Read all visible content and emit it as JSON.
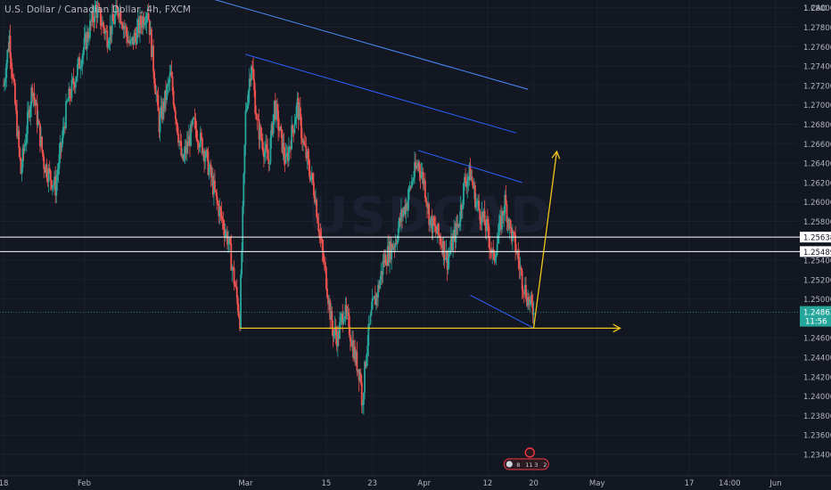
{
  "header": {
    "symbol_title": "U.S. Dollar / Canadian Dollar, 4h, FXCM"
  },
  "watermark": "USDCAD",
  "colors": {
    "background": "#131722",
    "grid": "#1c202c",
    "up": "#26a69a",
    "down": "#ef5350",
    "channel": "#2962ff",
    "channel_light": "#4a8cff",
    "arrow": "#f0c419",
    "level_line": "#ffffff",
    "price_badge": "#26a69a",
    "axis_text": "#b2b5be"
  },
  "chart_data": {
    "type": "candlestick",
    "title": "U.S. Dollar / Canadian Dollar, 4h, FXCM",
    "xlabel": "",
    "ylabel": "",
    "ylim": [
      1.2318,
      1.2808
    ],
    "grid": true,
    "y_ticks": [
      "1.28000",
      "1.27800",
      "1.27600",
      "1.27400",
      "1.27200",
      "1.27000",
      "1.26800",
      "1.26600",
      "1.26400",
      "1.26200",
      "1.26000",
      "1.25800",
      "1.25400",
      "1.25200",
      "1.25000",
      "1.24600",
      "1.24400",
      "1.24200",
      "1.24000",
      "1.23800",
      "1.23600",
      "1.23400"
    ],
    "y_axis_unit": "CAD",
    "x_ticks": [
      {
        "label": "18",
        "date": "2021-01-18"
      },
      {
        "label": "Feb",
        "date": "2021-02-01"
      },
      {
        "label": "Mar",
        "date": "2021-03-01"
      },
      {
        "label": "15",
        "date": "2021-03-15"
      },
      {
        "label": "23",
        "date": "2021-03-23"
      },
      {
        "label": "Apr",
        "date": "2021-04-01"
      },
      {
        "label": "12",
        "date": "2021-04-12"
      },
      {
        "label": "20",
        "date": "2021-04-20"
      },
      {
        "label": "May",
        "date": "2021-05-01"
      },
      {
        "label": "17",
        "date": "2021-05-17"
      },
      {
        "label": "14:00",
        "date": "2021-05-24"
      },
      {
        "label": "Jun",
        "date": "2021-06-01"
      }
    ],
    "price_anchors": [
      [
        "2021-01-18",
        1.272
      ],
      [
        "2021-01-19",
        1.277
      ],
      [
        "2021-01-21",
        1.263
      ],
      [
        "2021-01-23",
        1.272
      ],
      [
        "2021-01-25",
        1.264
      ],
      [
        "2021-01-27",
        1.2615
      ],
      [
        "2021-01-29",
        1.27
      ],
      [
        "2021-02-01",
        1.276
      ],
      [
        "2021-02-03",
        1.28
      ],
      [
        "2021-02-05",
        1.277
      ],
      [
        "2021-02-07",
        1.28
      ],
      [
        "2021-02-09",
        1.276
      ],
      [
        "2021-02-12",
        1.28
      ],
      [
        "2021-02-14",
        1.268
      ],
      [
        "2021-02-16",
        1.273
      ],
      [
        "2021-02-18",
        1.264
      ],
      [
        "2021-02-20",
        1.268
      ],
      [
        "2021-02-22",
        1.265
      ],
      [
        "2021-02-24",
        1.26
      ],
      [
        "2021-02-26",
        1.256
      ],
      [
        "2021-02-27",
        1.252
      ],
      [
        "2021-02-28",
        1.248
      ],
      [
        "2021-03-01",
        1.269
      ],
      [
        "2021-03-02",
        1.2745
      ],
      [
        "2021-03-03",
        1.268
      ],
      [
        "2021-03-05",
        1.264
      ],
      [
        "2021-03-06",
        1.27
      ],
      [
        "2021-03-08",
        1.264
      ],
      [
        "2021-03-10",
        1.27
      ],
      [
        "2021-03-11",
        1.266
      ],
      [
        "2021-03-13",
        1.261
      ],
      [
        "2021-03-14",
        1.256
      ],
      [
        "2021-03-15",
        1.252
      ],
      [
        "2021-03-16",
        1.247
      ],
      [
        "2021-03-17",
        1.246
      ],
      [
        "2021-03-18",
        1.249
      ],
      [
        "2021-03-19",
        1.247
      ],
      [
        "2021-03-20",
        1.244
      ],
      [
        "2021-03-21",
        1.242
      ],
      [
        "2021-03-21",
        1.2375
      ],
      [
        "2021-03-22",
        1.245
      ],
      [
        "2021-03-23",
        1.249
      ],
      [
        "2021-03-24",
        1.251
      ],
      [
        "2021-03-25",
        1.254
      ],
      [
        "2021-03-27",
        1.256
      ],
      [
        "2021-03-28",
        1.2585
      ],
      [
        "2021-03-29",
        1.26
      ],
      [
        "2021-03-30",
        1.2625
      ],
      [
        "2021-03-31",
        1.264
      ],
      [
        "2021-04-01",
        1.262
      ],
      [
        "2021-04-02",
        1.258
      ],
      [
        "2021-04-04",
        1.256
      ],
      [
        "2021-04-05",
        1.254
      ],
      [
        "2021-04-07",
        1.258
      ],
      [
        "2021-04-08",
        1.262
      ],
      [
        "2021-04-09",
        1.263
      ],
      [
        "2021-04-10",
        1.26
      ],
      [
        "2021-04-12",
        1.257
      ],
      [
        "2021-04-13",
        1.254
      ],
      [
        "2021-04-15",
        1.26
      ],
      [
        "2021-04-16",
        1.257
      ],
      [
        "2021-04-17",
        1.255
      ],
      [
        "2021-04-18",
        1.252
      ],
      [
        "2021-04-19",
        1.25
      ],
      [
        "2021-04-20",
        1.2486
      ]
    ],
    "channels": [
      {
        "start": [
          "2021-02-18",
          1.2818
        ],
        "end": [
          "2021-04-19",
          1.2716
        ]
      },
      {
        "start": [
          "2021-03-01",
          1.2752
        ],
        "end": [
          "2021-04-17",
          1.2671
        ]
      },
      {
        "start": [
          "2021-03-31",
          1.2653
        ],
        "end": [
          "2021-04-18",
          1.262
        ]
      },
      {
        "start": [
          "2021-04-09",
          1.2504
        ],
        "end": [
          "2021-04-20",
          1.247
        ]
      }
    ],
    "horizontal_levels": [
      {
        "value": 1.25638,
        "label": "1.25638"
      },
      {
        "value": 1.25489,
        "label": "1.25489"
      }
    ],
    "support_arrow": {
      "start": [
        "2021-02-28",
        1.247
      ],
      "end": [
        "2021-05-05",
        1.247
      ]
    },
    "projection_arrow": {
      "start": [
        "2021-04-20",
        1.247
      ],
      "end": [
        "2021-04-24",
        1.2652
      ]
    },
    "last_price": {
      "value": 1.24863,
      "label": "1.24863",
      "countdown": "11:56"
    },
    "events": {
      "values": [
        "8",
        "11",
        "3",
        "2"
      ]
    }
  }
}
